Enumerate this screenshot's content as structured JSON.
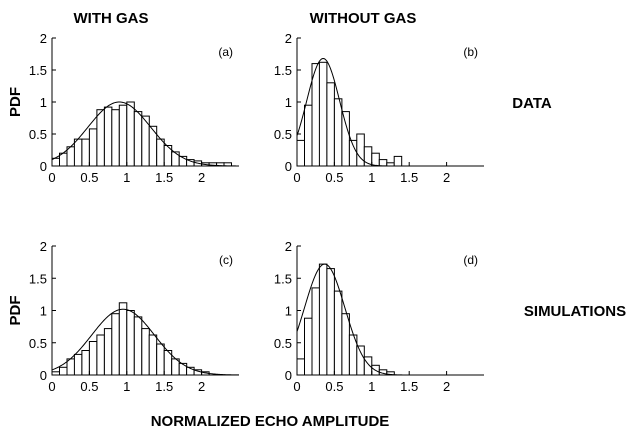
{
  "labels": {
    "col_left": "WITH GAS",
    "col_right": "WITHOUT GAS",
    "row_top": "DATA",
    "row_bottom": "SIMULATIONS",
    "xlabel": "NORMALIZED ECHO AMPLITUDE",
    "ylabel": "PDF"
  },
  "chart_data": [
    {
      "type": "bar",
      "panel": "(a)",
      "ylabel": "PDF",
      "xlim": [
        0,
        2.5
      ],
      "ylim": [
        0,
        2
      ],
      "xticks": [
        "0",
        "0.5",
        "1",
        "1.5",
        "2"
      ],
      "yticks": [
        "0",
        "0.5",
        "1",
        "1.5",
        "2"
      ],
      "bin_width": 0.1,
      "bin_centers": [
        0.05,
        0.15,
        0.25,
        0.35,
        0.45,
        0.55,
        0.65,
        0.75,
        0.85,
        0.95,
        1.05,
        1.15,
        1.25,
        1.35,
        1.45,
        1.55,
        1.65,
        1.75,
        1.85,
        1.95,
        2.05,
        2.15,
        2.25,
        2.35
      ],
      "values": [
        0.12,
        0.2,
        0.3,
        0.42,
        0.42,
        0.58,
        0.88,
        0.92,
        0.88,
        0.95,
        1.0,
        0.85,
        0.78,
        0.62,
        0.42,
        0.32,
        0.22,
        0.15,
        0.1,
        0.08,
        0.05,
        0.05,
        0.05,
        0.05
      ],
      "fit_curve": {
        "type": "gaussian",
        "peak": 1.0,
        "mean": 0.9,
        "sigma": 0.42
      }
    },
    {
      "type": "bar",
      "panel": "(b)",
      "ylabel": "",
      "xlim": [
        0,
        2.5
      ],
      "ylim": [
        0,
        2
      ],
      "xticks": [
        "0",
        "0.5",
        "1",
        "1.5",
        "2"
      ],
      "yticks": [
        "0",
        "0.5",
        "1",
        "1.5",
        "2"
      ],
      "bin_width": 0.1,
      "bin_centers": [
        0.05,
        0.15,
        0.25,
        0.35,
        0.45,
        0.55,
        0.65,
        0.75,
        0.85,
        0.95,
        1.05,
        1.15,
        1.25,
        1.35
      ],
      "values": [
        0.4,
        0.95,
        1.6,
        1.62,
        1.3,
        1.05,
        0.85,
        0.4,
        0.5,
        0.3,
        0.2,
        0.1,
        0.05,
        0.15
      ],
      "fit_curve": {
        "type": "gaussian",
        "peak": 1.68,
        "mean": 0.35,
        "sigma": 0.22
      }
    },
    {
      "type": "bar",
      "panel": "(c)",
      "ylabel": "PDF",
      "xlim": [
        0,
        2.5
      ],
      "ylim": [
        0,
        2
      ],
      "xticks": [
        "0",
        "0.5",
        "1",
        "1.5",
        "2"
      ],
      "yticks": [
        "0",
        "0.5",
        "1",
        "1.5",
        "2"
      ],
      "bin_width": 0.1,
      "bin_centers": [
        0.05,
        0.15,
        0.25,
        0.35,
        0.45,
        0.55,
        0.65,
        0.75,
        0.85,
        0.95,
        1.05,
        1.15,
        1.25,
        1.35,
        1.45,
        1.55,
        1.65,
        1.75,
        1.85,
        1.95,
        2.05
      ],
      "values": [
        0.05,
        0.12,
        0.25,
        0.32,
        0.38,
        0.52,
        0.62,
        0.72,
        0.95,
        1.12,
        1.0,
        0.9,
        0.72,
        0.62,
        0.48,
        0.38,
        0.25,
        0.18,
        0.12,
        0.08,
        0.05
      ],
      "fit_curve": {
        "type": "gaussian",
        "peak": 1.02,
        "mean": 0.95,
        "sigma": 0.42
      }
    },
    {
      "type": "bar",
      "panel": "(d)",
      "ylabel": "",
      "xlim": [
        0,
        2.5
      ],
      "ylim": [
        0,
        2
      ],
      "xticks": [
        "0",
        "0.5",
        "1",
        "1.5",
        "2"
      ],
      "yticks": [
        "0",
        "0.5",
        "1",
        "1.5",
        "2"
      ],
      "bin_width": 0.1,
      "bin_centers": [
        0.05,
        0.15,
        0.25,
        0.35,
        0.45,
        0.55,
        0.65,
        0.75,
        0.85,
        0.95,
        1.05,
        1.15,
        1.25
      ],
      "values": [
        0.25,
        0.88,
        1.35,
        1.72,
        1.65,
        1.3,
        0.95,
        0.62,
        0.45,
        0.28,
        0.15,
        0.08,
        0.05
      ],
      "fit_curve": {
        "type": "gaussian",
        "peak": 1.72,
        "mean": 0.37,
        "sigma": 0.27
      }
    }
  ]
}
